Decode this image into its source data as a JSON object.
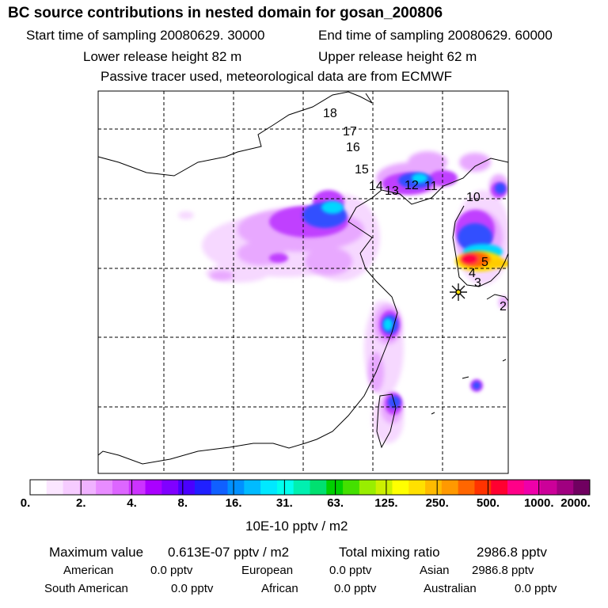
{
  "header": {
    "title": "BC  source contributions in nested domain for gosan_200806",
    "start_label": "Start time of sampling 20080629. 30000",
    "end_label": "End time of sampling 20080629. 60000",
    "lower_label": "Lower release height   82 m",
    "upper_label": "Upper release height   62 m",
    "note": "Passive tracer used, meteorological data are from ECMWF"
  },
  "chart_data": {
    "type": "heatmap",
    "title": "BC  source contributions in nested domain for gosan_200806",
    "colorbar_label": "10E-10 pptv / m2",
    "colorbar_ticks": [
      "0.",
      "2.",
      "4.",
      "8.",
      "16.",
      "31.",
      "63.",
      "125.",
      "250.",
      "500.",
      "1000.",
      "2000."
    ],
    "colorbar_colors": [
      "#ffffff",
      "#fbe6ff",
      "#f6ccff",
      "#f0b2ff",
      "#e88cff",
      "#dd66ff",
      "#cc33ff",
      "#aa00ff",
      "#8000ff",
      "#4a00ff",
      "#2020ff",
      "#1060ff",
      "#0090ff",
      "#00bbff",
      "#00e8ff",
      "#00ffee",
      "#00f0b0",
      "#00e070",
      "#00d000",
      "#44e000",
      "#99ee00",
      "#ccf000",
      "#ffff00",
      "#ffe000",
      "#ffbb00",
      "#ff9900",
      "#ff6600",
      "#ff3300",
      "#ff0030",
      "#ff0088",
      "#ee00aa",
      "#cc0099",
      "#a00080",
      "#700060"
    ],
    "trajectory_labels": [
      "18",
      "17",
      "16",
      "15",
      "14",
      "13",
      "12",
      "11",
      "10",
      "5",
      "4",
      "3",
      "2"
    ],
    "receptor": "gosan"
  },
  "stats": {
    "max_label": "Maximum value",
    "max_value": "0.613E-07 pptv / m2",
    "total_label": "Total mixing ratio",
    "total_value": "2986.8 pptv",
    "regions": [
      {
        "name": "American",
        "value": "0.0 pptv"
      },
      {
        "name": "European",
        "value": "0.0 pptv"
      },
      {
        "name": "Asian",
        "value": "2986.8 pptv"
      },
      {
        "name": "South American",
        "value": "0.0 pptv"
      },
      {
        "name": "African",
        "value": "0.0 pptv"
      },
      {
        "name": "Australian",
        "value": "0.0 pptv"
      }
    ]
  }
}
